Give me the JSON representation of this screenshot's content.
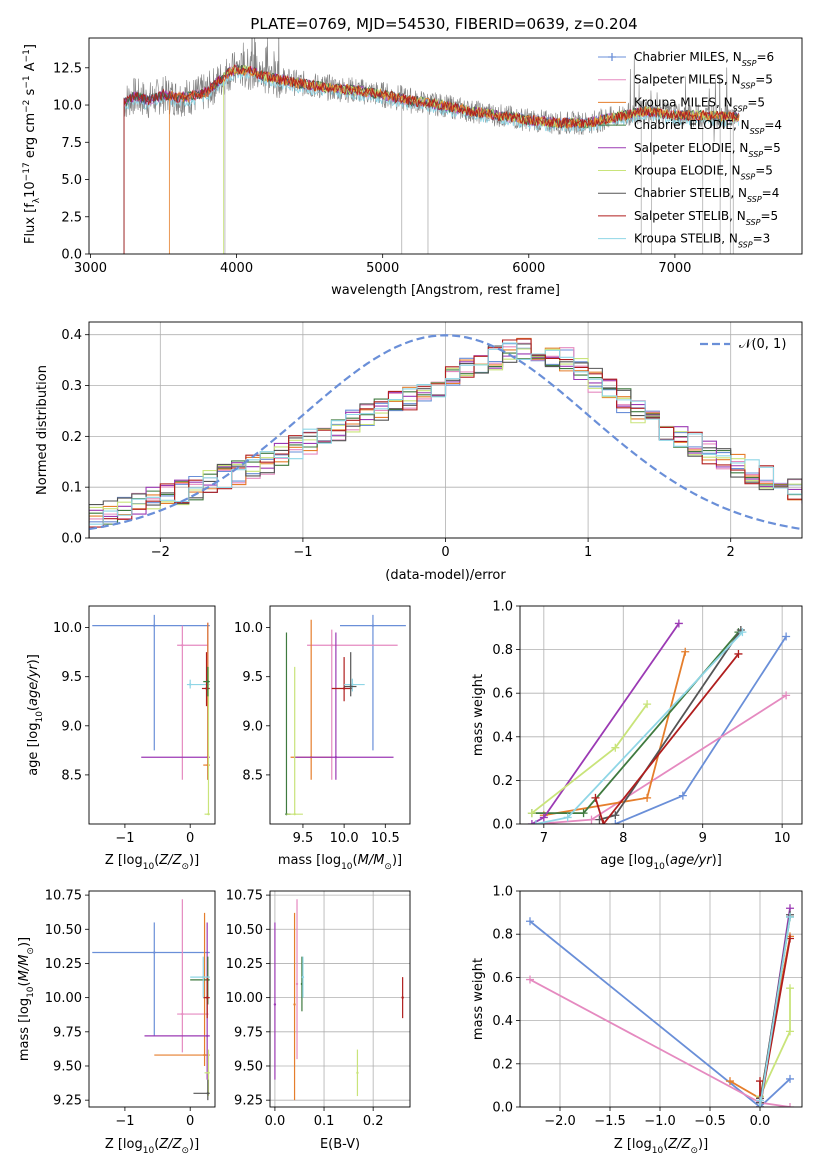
{
  "figure": {
    "title": "PLATE=0769, MJD=54530, FIBERID=0639, z=0.204"
  },
  "colors": {
    "blue": "#6a8fd8",
    "pink": "#e58ac0",
    "orange": "#e57e2c",
    "darkgreen": "#3f7a3f",
    "purple": "#9b3ab4",
    "yellowgreen": "#c9e47a",
    "gray": "#555555",
    "red": "#b01e1e",
    "cyan": "#8fd6e6",
    "spec_gray": "#808080",
    "grid": "#b0b0b0"
  },
  "chart_data": [
    {
      "id": "spectrum",
      "type": "line",
      "title": "PLATE=0769, MJD=54530, FIBERID=0639, z=0.204",
      "xlabel": "wavelength [Angstrom, rest frame]",
      "ylabel": "Flux [f_λ 10^-17 erg cm^-2 s^-1 A^-1]",
      "xlim": [
        2990,
        7870
      ],
      "ylim": [
        0,
        14.5
      ],
      "xticks": [
        3000,
        4000,
        5000,
        6000,
        7000
      ],
      "yticks": [
        0.0,
        2.5,
        5.0,
        7.5,
        10.0,
        12.5
      ],
      "grid": false,
      "legend_position": "top-right",
      "legend": [
        {
          "label": "Chabrier MILES, N",
          "sub": "SSP",
          "tail": "=6",
          "color": "blue"
        },
        {
          "label": "Salpeter MILES, N",
          "sub": "SSP",
          "tail": "=5",
          "color": "pink"
        },
        {
          "label": "Kroupa MILES, N",
          "sub": "SSP",
          "tail": "=5",
          "color": "orange"
        },
        {
          "label": "Chabrier ELODIE, N",
          "sub": "SSP",
          "tail": "=4",
          "color": "darkgreen"
        },
        {
          "label": "Salpeter ELODIE, N",
          "sub": "SSP",
          "tail": "=5",
          "color": "purple"
        },
        {
          "label": "Kroupa ELODIE, N",
          "sub": "SSP",
          "tail": "=5",
          "color": "yellowgreen"
        },
        {
          "label": "Chabrier STELIB, N",
          "sub": "SSP",
          "tail": "=4",
          "color": "gray"
        },
        {
          "label": "Salpeter STELIB, N",
          "sub": "SSP",
          "tail": "=5",
          "color": "red"
        },
        {
          "label": "Kroupa STELIB, N",
          "sub": "SSP",
          "tail": "=3",
          "color": "cyan"
        }
      ],
      "model_envelope": {
        "x": [
          3230,
          3300,
          3400,
          3500,
          3600,
          3700,
          3800,
          3900,
          3950,
          4000,
          4100,
          4200,
          4300,
          4400,
          4600,
          4800,
          5000,
          5200,
          5400,
          5600,
          5800,
          6000,
          6200,
          6400,
          6600,
          6800,
          7000,
          7200,
          7400
        ],
        "y": [
          10.2,
          10.6,
          10.3,
          10.7,
          10.5,
          10.6,
          10.9,
          11.8,
          12.2,
          12.4,
          12.3,
          11.9,
          11.7,
          11.5,
          11.2,
          11.0,
          10.7,
          10.3,
          10.0,
          9.6,
          9.3,
          9.0,
          8.8,
          8.8,
          9.2,
          9.6,
          9.3,
          9.3,
          9.2
        ]
      },
      "starts": {
        "blue": 3230,
        "pink": 3230,
        "gray": 3230,
        "cyan": 3230,
        "purple": 3230,
        "red": 3230,
        "darkgreen": 3230,
        "orange": 3540,
        "yellowgreen": 3910
      },
      "deep_lines": [
        3230,
        3920,
        5130,
        5310,
        6770,
        6840,
        7190,
        7310,
        7380,
        7400
      ]
    },
    {
      "id": "residuals",
      "type": "histogram",
      "xlabel": "(data-model)/error",
      "ylabel": "Normed distribution",
      "xlim": [
        -2.5,
        2.5
      ],
      "ylim": [
        0,
        0.425
      ],
      "xticks": [
        -2,
        -1,
        0,
        1,
        2
      ],
      "yticks": [
        0.0,
        0.1,
        0.2,
        0.3,
        0.4
      ],
      "grid": true,
      "legend_position": "top-right",
      "legend": [
        {
          "label": "𝒩(0, 1)",
          "color": "blue",
          "dashed": true
        }
      ],
      "bin_width": 0.1,
      "bins_from": -2.5,
      "base_profile": [
        0.045,
        0.05,
        0.06,
        0.07,
        0.075,
        0.085,
        0.09,
        0.1,
        0.11,
        0.12,
        0.13,
        0.14,
        0.15,
        0.165,
        0.18,
        0.19,
        0.2,
        0.215,
        0.23,
        0.24,
        0.25,
        0.265,
        0.275,
        0.29,
        0.3,
        0.315,
        0.33,
        0.345,
        0.355,
        0.365,
        0.37,
        0.37,
        0.36,
        0.35,
        0.33,
        0.31,
        0.29,
        0.27,
        0.25,
        0.23,
        0.215,
        0.2,
        0.185,
        0.17,
        0.155,
        0.14,
        0.13,
        0.12,
        0.11,
        0.1,
        0.09,
        0.08,
        0.075,
        0.065,
        0.06,
        0.055,
        0.05,
        0.05,
        0.045,
        0.045
      ],
      "series": [
        "blue",
        "pink",
        "orange",
        "darkgreen",
        "purple",
        "yellowgreen",
        "gray",
        "red",
        "cyan"
      ]
    },
    {
      "id": "age_vs_Z",
      "type": "errorbar",
      "xlabel": "Z [log10(Z/Z⊙)]",
      "ylabel": "age [log10(age/yr)]",
      "xlim": [
        -1.55,
        0.38
      ],
      "ylim": [
        8.0,
        10.22
      ],
      "xticks": [
        -1,
        0
      ],
      "yticks": [
        8.5,
        9.0,
        9.5,
        10.0
      ],
      "grid": false,
      "points": [
        {
          "c": "blue",
          "x": -0.55,
          "xe": [
            -1.5,
            0.3
          ],
          "y": 10.02,
          "ye": [
            8.75,
            10.13
          ]
        },
        {
          "c": "pink",
          "x": -0.12,
          "xe": [
            -0.2,
            0.28
          ],
          "y": 9.82,
          "ye": [
            8.45,
            10.02
          ]
        },
        {
          "c": "cyan",
          "x": 0.0,
          "xe": [
            -0.05,
            0.3
          ],
          "y": 9.42,
          "ye": [
            9.38,
            9.47
          ]
        },
        {
          "c": "purple",
          "x": 0.27,
          "xe": [
            -0.75,
            0.3
          ],
          "y": 8.68,
          "ye": [
            8.45,
            10.05
          ]
        },
        {
          "c": "orange",
          "x": 0.27,
          "xe": [
            0.2,
            0.3
          ],
          "y": 8.6,
          "ye": [
            8.45,
            10.05
          ]
        },
        {
          "c": "yellowgreen",
          "x": 0.28,
          "xe": [
            0.22,
            0.3
          ],
          "y": 8.1,
          "ye": [
            8.1,
            9.6
          ]
        },
        {
          "c": "red",
          "x": 0.25,
          "xe": [
            0.18,
            0.3
          ],
          "y": 9.38,
          "ye": [
            9.2,
            9.75
          ]
        },
        {
          "c": "darkgreen",
          "x": 0.27,
          "xe": [
            0.2,
            0.3
          ],
          "y": 9.45,
          "ye": [
            9.3,
            9.6
          ]
        }
      ]
    },
    {
      "id": "age_vs_mass",
      "type": "errorbar",
      "xlabel": "mass [log10(M/M⊙)]",
      "ylabel": "",
      "xlim": [
        9.1,
        10.8
      ],
      "ylim": [
        8.0,
        10.22
      ],
      "xticks": [
        9.5,
        10.0,
        10.5
      ],
      "yticks": [
        8.5,
        9.0,
        9.5,
        10.0
      ],
      "grid": false,
      "points": [
        {
          "c": "blue",
          "x": 10.35,
          "xe": [
            9.95,
            10.75
          ],
          "y": 10.02,
          "ye": [
            8.75,
            10.13
          ]
        },
        {
          "c": "pink",
          "x": 9.85,
          "xe": [
            9.55,
            10.65
          ],
          "y": 9.82,
          "ye": [
            8.45,
            9.98
          ]
        },
        {
          "c": "orange",
          "x": 9.6,
          "xe": [
            9.35,
            9.85
          ],
          "y": 8.68,
          "ye": [
            8.45,
            10.08
          ]
        },
        {
          "c": "purple",
          "x": 9.9,
          "xe": [
            9.4,
            10.6
          ],
          "y": 8.68,
          "ye": [
            8.45,
            9.95
          ]
        },
        {
          "c": "darkgreen",
          "x": 9.3,
          "xe": [
            9.3,
            9.35
          ],
          "y": 8.1,
          "ye": [
            8.1,
            9.95
          ]
        },
        {
          "c": "yellowgreen",
          "x": 9.4,
          "xe": [
            9.3,
            9.5
          ],
          "y": 8.1,
          "ye": [
            8.1,
            9.6
          ]
        },
        {
          "c": "red",
          "x": 10.0,
          "xe": [
            9.85,
            10.1
          ],
          "y": 9.38,
          "ye": [
            9.25,
            9.7
          ]
        },
        {
          "c": "cyan",
          "x": 10.1,
          "xe": [
            10.0,
            10.25
          ],
          "y": 9.42,
          "ye": [
            9.35,
            9.48
          ]
        },
        {
          "c": "gray",
          "x": 10.08,
          "xe": [
            10.0,
            10.15
          ],
          "y": 9.4,
          "ye": [
            9.3,
            9.75
          ]
        }
      ]
    },
    {
      "id": "weight_vs_age",
      "type": "line",
      "xlabel": "age [log10(age/yr)]",
      "ylabel": "mass weight",
      "xlim": [
        6.7,
        10.25
      ],
      "ylim": [
        0.0,
        1.0
      ],
      "xticks": [
        7,
        8,
        9,
        10
      ],
      "yticks": [
        0.0,
        0.2,
        0.4,
        0.6,
        0.8,
        1.0
      ],
      "grid": true,
      "series": [
        {
          "c": "blue",
          "x": [
            7.9,
            8.75,
            10.05
          ],
          "y": [
            0.0,
            0.13,
            0.86
          ]
        },
        {
          "c": "pink",
          "x": [
            6.9,
            7.6,
            10.05
          ],
          "y": [
            0.0,
            0.02,
            0.59
          ]
        },
        {
          "c": "orange",
          "x": [
            7.0,
            8.3,
            8.78
          ],
          "y": [
            0.04,
            0.12,
            0.79
          ]
        },
        {
          "c": "darkgreen",
          "x": [
            6.85,
            7.5,
            9.45
          ],
          "y": [
            0.05,
            0.05,
            0.88
          ]
        },
        {
          "c": "purple",
          "x": [
            6.85,
            7.0,
            8.7
          ],
          "y": [
            0.0,
            0.03,
            0.92
          ]
        },
        {
          "c": "yellowgreen",
          "x": [
            6.85,
            7.9,
            8.3
          ],
          "y": [
            0.05,
            0.35,
            0.55
          ]
        },
        {
          "c": "gray",
          "x": [
            7.7,
            7.9,
            9.48
          ],
          "y": [
            0.02,
            0.04,
            0.89
          ]
        },
        {
          "c": "red",
          "x": [
            7.65,
            7.75,
            9.45
          ],
          "y": [
            0.12,
            0.0,
            0.78
          ]
        },
        {
          "c": "cyan",
          "x": [
            6.9,
            7.3,
            9.5
          ],
          "y": [
            0.0,
            0.03,
            0.88
          ]
        }
      ]
    },
    {
      "id": "mass_vs_Z",
      "type": "errorbar",
      "xlabel": "Z [log10(Z/Z⊙)]",
      "ylabel": "mass [log10(M/M⊙)]",
      "xlim": [
        -1.55,
        0.38
      ],
      "ylim": [
        9.2,
        10.78
      ],
      "xticks": [
        -1,
        0
      ],
      "yticks": [
        9.25,
        9.5,
        9.75,
        10.0,
        10.25,
        10.5,
        10.75
      ],
      "grid": false,
      "points": [
        {
          "c": "blue",
          "x": -0.55,
          "xe": [
            -1.5,
            0.3
          ],
          "y": 10.33,
          "ye": [
            9.72,
            10.55
          ]
        },
        {
          "c": "pink",
          "x": -0.12,
          "xe": [
            -0.2,
            0.28
          ],
          "y": 9.88,
          "ye": [
            9.6,
            10.72
          ]
        },
        {
          "c": "orange",
          "x": 0.22,
          "xe": [
            -0.55,
            0.3
          ],
          "y": 9.58,
          "ye": [
            9.5,
            10.62
          ]
        },
        {
          "c": "purple",
          "x": 0.26,
          "xe": [
            -0.7,
            0.3
          ],
          "y": 9.72,
          "ye": [
            9.4,
            10.55
          ]
        },
        {
          "c": "darkgreen",
          "x": 0.27,
          "xe": [
            0.0,
            0.3
          ],
          "y": 10.13,
          "ye": [
            9.95,
            10.3
          ]
        },
        {
          "c": "yellowgreen",
          "x": 0.28,
          "xe": [
            0.22,
            0.3
          ],
          "y": 9.45,
          "ye": [
            9.28,
            9.62
          ]
        },
        {
          "c": "gray",
          "x": 0.27,
          "xe": [
            0.05,
            0.3
          ],
          "y": 9.3,
          "ye": [
            9.25,
            9.4
          ]
        },
        {
          "c": "red",
          "x": 0.26,
          "xe": [
            0.2,
            0.3
          ],
          "y": 10.0,
          "ye": [
            9.85,
            10.15
          ]
        },
        {
          "c": "cyan",
          "x": 0.2,
          "xe": [
            0.0,
            0.3
          ],
          "y": 10.15,
          "ye": [
            10.0,
            10.3
          ]
        }
      ]
    },
    {
      "id": "mass_vs_ebv",
      "type": "errorbar",
      "xlabel": "E(B-V)",
      "ylabel": "",
      "xlim": [
        -0.01,
        0.275
      ],
      "ylim": [
        9.2,
        10.78
      ],
      "xticks": [
        0.0,
        0.1,
        0.2
      ],
      "yticks": [
        9.25,
        9.5,
        9.75,
        10.0,
        10.25,
        10.5,
        10.75
      ],
      "grid": true,
      "points": [
        {
          "c": "purple",
          "x": 0.0,
          "y": 9.95,
          "ye": [
            9.4,
            10.55
          ]
        },
        {
          "c": "pink",
          "x": 0.045,
          "y": 10.1,
          "ye": [
            9.55,
            10.72
          ]
        },
        {
          "c": "orange",
          "x": 0.04,
          "y": 9.95,
          "ye": [
            9.25,
            10.62
          ]
        },
        {
          "c": "darkgreen",
          "x": 0.055,
          "y": 10.1,
          "ye": [
            9.9,
            10.3
          ]
        },
        {
          "c": "cyan",
          "x": 0.057,
          "y": 10.15,
          "ye": [
            10.0,
            10.3
          ]
        },
        {
          "c": "yellowgreen",
          "x": 0.168,
          "y": 9.45,
          "ye": [
            9.28,
            9.62
          ]
        },
        {
          "c": "red",
          "x": 0.26,
          "y": 10.0,
          "ye": [
            9.85,
            10.15
          ]
        }
      ]
    },
    {
      "id": "weight_vs_Z",
      "type": "line",
      "xlabel": "Z [log10(Z/Z⊙)]",
      "ylabel": "mass weight",
      "xlim": [
        -2.4,
        0.42
      ],
      "ylim": [
        0.0,
        1.0
      ],
      "xticks": [
        -2.0,
        -1.5,
        -1.0,
        -0.5,
        0.0
      ],
      "yticks": [
        0.0,
        0.2,
        0.4,
        0.6,
        0.8,
        1.0
      ],
      "grid": true,
      "series": [
        {
          "c": "blue",
          "x": [
            -2.3,
            0.0,
            0.3
          ],
          "y": [
            0.86,
            0.0,
            0.13
          ]
        },
        {
          "c": "pink",
          "x": [
            -2.3,
            0.0,
            0.3
          ],
          "y": [
            0.59,
            0.02,
            0.0
          ]
        },
        {
          "c": "orange",
          "x": [
            -0.3,
            0.0,
            0.3
          ],
          "y": [
            0.12,
            0.04,
            0.79
          ]
        },
        {
          "c": "darkgreen",
          "x": [
            0.0,
            0.0,
            0.3
          ],
          "y": [
            0.05,
            0.0,
            0.88
          ]
        },
        {
          "c": "purple",
          "x": [
            0.0,
            0.0,
            0.3
          ],
          "y": [
            0.03,
            0.0,
            0.92
          ]
        },
        {
          "c": "yellowgreen",
          "x": [
            0.0,
            0.3,
            0.3
          ],
          "y": [
            0.05,
            0.35,
            0.55
          ]
        },
        {
          "c": "gray",
          "x": [
            0.0,
            0.0,
            0.3
          ],
          "y": [
            0.04,
            0.02,
            0.89
          ]
        },
        {
          "c": "red",
          "x": [
            0.0,
            0.0,
            0.3
          ],
          "y": [
            0.12,
            0.0,
            0.78
          ]
        },
        {
          "c": "cyan",
          "x": [
            0.0,
            0.0,
            0.3
          ],
          "y": [
            0.03,
            0.0,
            0.88
          ]
        }
      ]
    }
  ]
}
